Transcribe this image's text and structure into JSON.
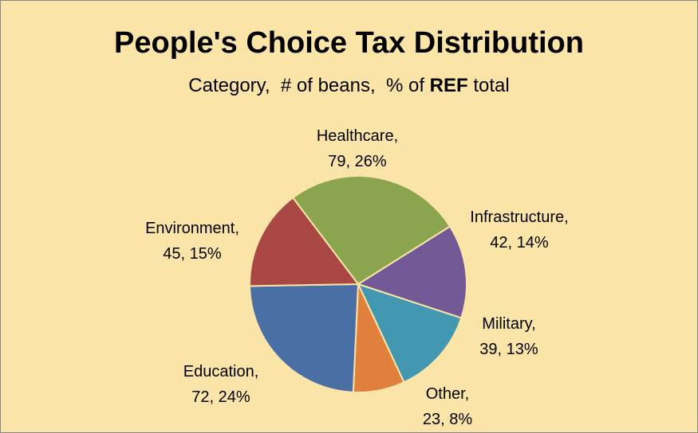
{
  "chart_data": {
    "type": "pie",
    "title": "People's Choice Tax Distribution",
    "subtitle": {
      "before": "Category,  # of beans,  % of ",
      "bold": "REF",
      "after": " total"
    },
    "categories": [
      "Healthcare",
      "Infrastructure",
      "Military",
      "Other",
      "Education",
      "Environment"
    ],
    "values": [
      79,
      42,
      39,
      23,
      72,
      45
    ],
    "percents": [
      "26%",
      "14%",
      "13%",
      "8%",
      "24%",
      "15%"
    ],
    "labels": [
      {
        "line1": "Healthcare,",
        "line2": "79, 26%"
      },
      {
        "line1": "Infrastructure,",
        "line2": "42, 14%"
      },
      {
        "line1": "Military,",
        "line2": "39, 13%"
      },
      {
        "line1": "Other,",
        "line2": "23, 8%"
      },
      {
        "line1": "Education,",
        "line2": "72, 24%"
      },
      {
        "line1": "Environment,",
        "line2": "45, 15%"
      }
    ],
    "colors": [
      "#8ba54e",
      "#735a96",
      "#4198b0",
      "#e0803c",
      "#4a6fa5",
      "#a84744"
    ],
    "background": "#fbe4a7",
    "legend": "none"
  }
}
